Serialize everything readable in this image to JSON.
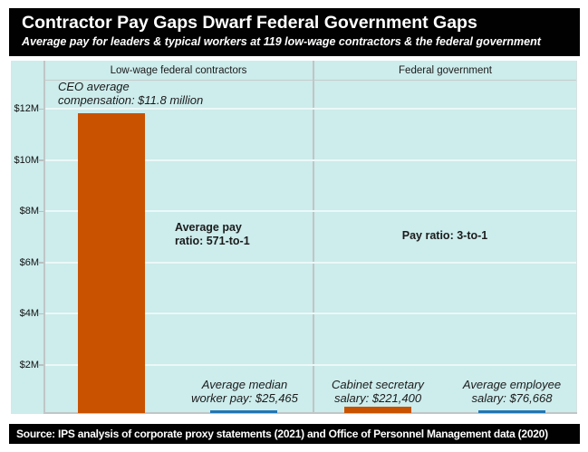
{
  "header": {
    "title": "Contractor Pay Gaps Dwarf Federal Government Gaps",
    "subtitle": "Average pay for leaders & typical workers at 119 low-wage contractors & the federal government"
  },
  "chart_data": {
    "type": "bar",
    "title": "Contractor Pay Gaps Dwarf Federal Government Gaps",
    "subtitle": "Average pay for leaders & typical workers at 119 low-wage contractors & the federal government",
    "panels": [
      "Low-wage federal contractors",
      "Federal government"
    ],
    "y_axis": {
      "tick_labels": [
        "$12M",
        "$10M",
        "$8M",
        "$6M",
        "$4M",
        "$2M"
      ],
      "tick_values": [
        12000000,
        10000000,
        8000000,
        6000000,
        4000000,
        2000000
      ],
      "ylim": [
        0,
        13000000
      ],
      "grid": true
    },
    "legend": "none",
    "bars": [
      {
        "panel": "Low-wage federal contractors",
        "name": "CEO average compensation",
        "value": 11800000,
        "value_label": "CEO average\ncompensation: $11.8 million",
        "color": "#c85200"
      },
      {
        "panel": "Low-wage federal contractors",
        "name": "Average median worker pay",
        "value": 25465,
        "value_label": "Average median\nworker pay: $25,465",
        "color": "#2176b4"
      },
      {
        "panel": "Federal government",
        "name": "Cabinet secretary salary",
        "value": 221400,
        "value_label": "Cabinet secretary\nsalary: $221,400",
        "color": "#c85200"
      },
      {
        "panel": "Federal government",
        "name": "Average employee salary",
        "value": 76668,
        "value_label": "Average employee\nsalary: $76,668",
        "color": "#2176b4"
      }
    ],
    "annotations": [
      {
        "panel": "Low-wage federal contractors",
        "text": "Average pay\nratio: 571-to-1"
      },
      {
        "panel": "Federal government",
        "text": "Pay ratio: 3-to-1"
      }
    ]
  },
  "footer": {
    "source": "Source: IPS analysis of corporate proxy statements (2021) and Office of Personnel Management data (2020)"
  },
  "colors": {
    "header_bg": "#010101",
    "chart_bg": "#cdecec",
    "gridline": "#ecf8f8",
    "orange": "#c85200",
    "blue": "#2176b4"
  }
}
